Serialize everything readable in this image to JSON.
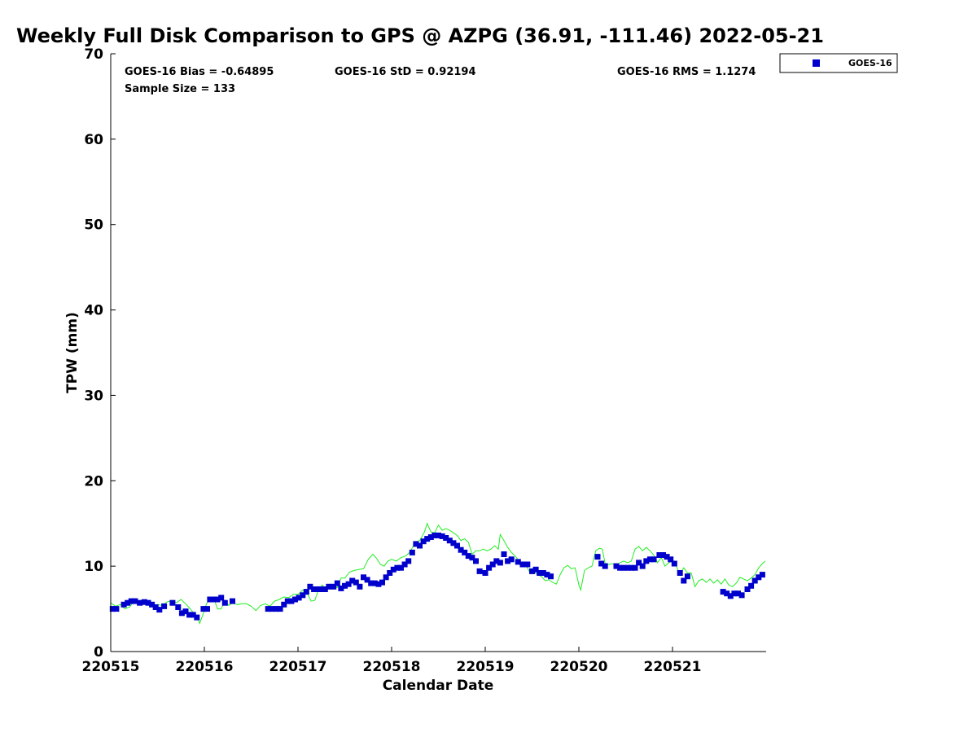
{
  "chart_data": {
    "type": "scatter",
    "title": "Weekly Full Disk Comparison to GPS @ AZPG (36.91, -111.46) 2022-05-21",
    "xlabel": "Calendar Date",
    "ylabel": "TPW (mm)",
    "xlim": [
      0,
      7
    ],
    "ylim": [
      0,
      70
    ],
    "x_ticks": [
      0,
      1,
      2,
      3,
      4,
      5,
      6
    ],
    "x_tick_labels": [
      "220515",
      "220516",
      "220517",
      "220518",
      "220519",
      "220520",
      "220521"
    ],
    "y_ticks": [
      0,
      10,
      20,
      30,
      40,
      50,
      60,
      70
    ],
    "y_tick_labels": [
      "0",
      "10",
      "20",
      "30",
      "40",
      "50",
      "60",
      "70"
    ],
    "grid": false,
    "legend_position": "outside-top-right",
    "stats": {
      "bias": "GOES-16 Bias = -0.64895",
      "std": "GOES-16 StD = 0.92194",
      "rms": "GOES-16 RMS = 1.1274",
      "sample": "Sample Size = 133"
    },
    "series": [
      {
        "name": "GOES-16",
        "kind": "markers",
        "color": "#0000cc",
        "points": [
          [
            0.02,
            5.0
          ],
          [
            0.06,
            5.0
          ],
          [
            0.14,
            5.5
          ],
          [
            0.18,
            5.7
          ],
          [
            0.22,
            5.9
          ],
          [
            0.26,
            5.9
          ],
          [
            0.31,
            5.7
          ],
          [
            0.36,
            5.8
          ],
          [
            0.4,
            5.7
          ],
          [
            0.44,
            5.5
          ],
          [
            0.48,
            5.2
          ],
          [
            0.52,
            4.9
          ],
          [
            0.57,
            5.3
          ],
          [
            0.66,
            5.7
          ],
          [
            0.72,
            5.2
          ],
          [
            0.76,
            4.5
          ],
          [
            0.8,
            4.7
          ],
          [
            0.84,
            4.3
          ],
          [
            0.88,
            4.3
          ],
          [
            0.92,
            4.0
          ],
          [
            0.99,
            5.0
          ],
          [
            1.03,
            5.0
          ],
          [
            1.06,
            6.1
          ],
          [
            1.1,
            6.1
          ],
          [
            1.14,
            6.1
          ],
          [
            1.18,
            6.3
          ],
          [
            1.22,
            5.7
          ],
          [
            1.3,
            5.9
          ],
          [
            1.68,
            5.0
          ],
          [
            1.72,
            5.0
          ],
          [
            1.77,
            5.0
          ],
          [
            1.81,
            5.0
          ],
          [
            1.85,
            5.5
          ],
          [
            1.89,
            5.9
          ],
          [
            1.93,
            5.9
          ],
          [
            1.97,
            6.1
          ],
          [
            2.01,
            6.3
          ],
          [
            2.05,
            6.6
          ],
          [
            2.09,
            7.0
          ],
          [
            2.13,
            7.6
          ],
          [
            2.17,
            7.3
          ],
          [
            2.21,
            7.3
          ],
          [
            2.25,
            7.3
          ],
          [
            2.29,
            7.3
          ],
          [
            2.33,
            7.6
          ],
          [
            2.38,
            7.6
          ],
          [
            2.42,
            8.0
          ],
          [
            2.46,
            7.4
          ],
          [
            2.5,
            7.7
          ],
          [
            2.54,
            7.9
          ],
          [
            2.58,
            8.3
          ],
          [
            2.62,
            8.1
          ],
          [
            2.66,
            7.6
          ],
          [
            2.7,
            8.7
          ],
          [
            2.74,
            8.4
          ],
          [
            2.78,
            8.0
          ],
          [
            2.82,
            8.0
          ],
          [
            2.86,
            7.9
          ],
          [
            2.9,
            8.1
          ],
          [
            2.94,
            8.7
          ],
          [
            2.98,
            9.2
          ],
          [
            3.02,
            9.6
          ],
          [
            3.06,
            9.8
          ],
          [
            3.1,
            9.8
          ],
          [
            3.14,
            10.2
          ],
          [
            3.18,
            10.6
          ],
          [
            3.22,
            11.6
          ],
          [
            3.26,
            12.6
          ],
          [
            3.3,
            12.4
          ],
          [
            3.34,
            12.9
          ],
          [
            3.38,
            13.2
          ],
          [
            3.42,
            13.4
          ],
          [
            3.46,
            13.6
          ],
          [
            3.5,
            13.6
          ],
          [
            3.54,
            13.5
          ],
          [
            3.58,
            13.3
          ],
          [
            3.62,
            13.0
          ],
          [
            3.66,
            12.7
          ],
          [
            3.7,
            12.4
          ],
          [
            3.74,
            11.9
          ],
          [
            3.78,
            11.6
          ],
          [
            3.82,
            11.2
          ],
          [
            3.86,
            11.0
          ],
          [
            3.9,
            10.6
          ],
          [
            3.94,
            9.4
          ],
          [
            4.0,
            9.2
          ],
          [
            4.04,
            9.8
          ],
          [
            4.08,
            10.2
          ],
          [
            4.12,
            10.6
          ],
          [
            4.16,
            10.4
          ],
          [
            4.2,
            11.4
          ],
          [
            4.24,
            10.6
          ],
          [
            4.28,
            10.8
          ],
          [
            4.35,
            10.5
          ],
          [
            4.4,
            10.2
          ],
          [
            4.45,
            10.2
          ],
          [
            4.5,
            9.4
          ],
          [
            4.54,
            9.6
          ],
          [
            4.58,
            9.2
          ],
          [
            4.62,
            9.2
          ],
          [
            4.66,
            9.0
          ],
          [
            4.7,
            8.8
          ],
          [
            5.2,
            11.1
          ],
          [
            5.24,
            10.3
          ],
          [
            5.28,
            10.0
          ],
          [
            5.4,
            10.0
          ],
          [
            5.44,
            9.8
          ],
          [
            5.48,
            9.8
          ],
          [
            5.52,
            9.8
          ],
          [
            5.56,
            9.8
          ],
          [
            5.6,
            9.8
          ],
          [
            5.64,
            10.4
          ],
          [
            5.68,
            10.0
          ],
          [
            5.72,
            10.6
          ],
          [
            5.76,
            10.8
          ],
          [
            5.8,
            10.8
          ],
          [
            5.86,
            11.3
          ],
          [
            5.9,
            11.3
          ],
          [
            5.94,
            11.1
          ],
          [
            5.98,
            10.8
          ],
          [
            6.02,
            10.3
          ],
          [
            6.08,
            9.2
          ],
          [
            6.12,
            8.3
          ],
          [
            6.16,
            8.8
          ],
          [
            6.54,
            7.0
          ],
          [
            6.58,
            6.8
          ],
          [
            6.62,
            6.5
          ],
          [
            6.66,
            6.8
          ],
          [
            6.7,
            6.8
          ],
          [
            6.74,
            6.6
          ],
          [
            6.8,
            7.3
          ],
          [
            6.84,
            7.7
          ],
          [
            6.88,
            8.3
          ],
          [
            6.92,
            8.7
          ],
          [
            6.96,
            9.0
          ]
        ]
      },
      {
        "kind": "line",
        "color": "#22ee22",
        "points": [
          [
            0.0,
            5.7
          ],
          [
            0.05,
            5.3
          ],
          [
            0.1,
            5.5
          ],
          [
            0.15,
            5.0
          ],
          [
            0.2,
            5.2
          ],
          [
            0.25,
            5.9
          ],
          [
            0.3,
            5.8
          ],
          [
            0.35,
            5.6
          ],
          [
            0.4,
            5.8
          ],
          [
            0.45,
            5.3
          ],
          [
            0.5,
            5.5
          ],
          [
            0.55,
            5.4
          ],
          [
            0.6,
            5.8
          ],
          [
            0.65,
            6.0
          ],
          [
            0.7,
            5.7
          ],
          [
            0.75,
            6.1
          ],
          [
            0.8,
            5.6
          ],
          [
            0.84,
            5.1
          ],
          [
            0.88,
            4.6
          ],
          [
            0.92,
            4.2
          ],
          [
            0.95,
            3.3
          ],
          [
            0.98,
            4.2
          ],
          [
            1.02,
            5.5
          ],
          [
            1.06,
            6.4
          ],
          [
            1.1,
            6.3
          ],
          [
            1.14,
            5.0
          ],
          [
            1.18,
            5.0
          ],
          [
            1.22,
            6.0
          ],
          [
            1.26,
            5.4
          ],
          [
            1.3,
            5.7
          ],
          [
            1.35,
            5.5
          ],
          [
            1.4,
            5.6
          ],
          [
            1.45,
            5.6
          ],
          [
            1.5,
            5.3
          ],
          [
            1.55,
            4.8
          ],
          [
            1.6,
            5.4
          ],
          [
            1.65,
            5.6
          ],
          [
            1.7,
            5.3
          ],
          [
            1.75,
            5.9
          ],
          [
            1.8,
            6.1
          ],
          [
            1.85,
            6.4
          ],
          [
            1.9,
            6.3
          ],
          [
            1.95,
            6.7
          ],
          [
            2.0,
            6.7
          ],
          [
            2.05,
            7.2
          ],
          [
            2.1,
            6.8
          ],
          [
            2.14,
            5.9
          ],
          [
            2.18,
            6.0
          ],
          [
            2.22,
            7.3
          ],
          [
            2.26,
            7.8
          ],
          [
            2.3,
            7.2
          ],
          [
            2.34,
            7.9
          ],
          [
            2.38,
            7.7
          ],
          [
            2.42,
            7.5
          ],
          [
            2.46,
            8.6
          ],
          [
            2.5,
            8.6
          ],
          [
            2.55,
            9.3
          ],
          [
            2.6,
            9.5
          ],
          [
            2.65,
            9.6
          ],
          [
            2.7,
            9.7
          ],
          [
            2.75,
            10.8
          ],
          [
            2.8,
            11.4
          ],
          [
            2.84,
            10.9
          ],
          [
            2.88,
            10.2
          ],
          [
            2.92,
            10.0
          ],
          [
            2.96,
            10.6
          ],
          [
            3.0,
            10.8
          ],
          [
            3.05,
            10.6
          ],
          [
            3.1,
            11.0
          ],
          [
            3.15,
            11.2
          ],
          [
            3.2,
            11.7
          ],
          [
            3.25,
            12.8
          ],
          [
            3.3,
            13.0
          ],
          [
            3.35,
            14.0
          ],
          [
            3.38,
            15.0
          ],
          [
            3.42,
            14.0
          ],
          [
            3.46,
            13.9
          ],
          [
            3.5,
            14.8
          ],
          [
            3.54,
            14.2
          ],
          [
            3.58,
            14.4
          ],
          [
            3.62,
            14.2
          ],
          [
            3.66,
            13.9
          ],
          [
            3.7,
            13.6
          ],
          [
            3.74,
            13.0
          ],
          [
            3.78,
            13.2
          ],
          [
            3.82,
            12.8
          ],
          [
            3.86,
            11.4
          ],
          [
            3.9,
            11.8
          ],
          [
            3.94,
            11.8
          ],
          [
            3.98,
            12.0
          ],
          [
            4.02,
            11.8
          ],
          [
            4.06,
            12.0
          ],
          [
            4.1,
            12.4
          ],
          [
            4.14,
            12.0
          ],
          [
            4.16,
            13.7
          ],
          [
            4.2,
            13.0
          ],
          [
            4.24,
            12.2
          ],
          [
            4.28,
            11.6
          ],
          [
            4.32,
            11.2
          ],
          [
            4.36,
            10.6
          ],
          [
            4.4,
            10.4
          ],
          [
            4.44,
            10.0
          ],
          [
            4.48,
            9.2
          ],
          [
            4.52,
            9.3
          ],
          [
            4.56,
            9.0
          ],
          [
            4.6,
            8.8
          ],
          [
            4.64,
            8.3
          ],
          [
            4.68,
            8.4
          ],
          [
            4.72,
            8.1
          ],
          [
            4.76,
            7.9
          ],
          [
            4.8,
            9.0
          ],
          [
            4.84,
            9.8
          ],
          [
            4.88,
            10.1
          ],
          [
            4.92,
            9.7
          ],
          [
            4.96,
            9.8
          ],
          [
            5.0,
            7.8
          ],
          [
            5.02,
            7.2
          ],
          [
            5.06,
            9.5
          ],
          [
            5.1,
            9.8
          ],
          [
            5.14,
            10.0
          ],
          [
            5.18,
            11.8
          ],
          [
            5.22,
            12.1
          ],
          [
            5.25,
            12.0
          ],
          [
            5.28,
            10.3
          ],
          [
            5.32,
            10.2
          ],
          [
            5.36,
            10.3
          ],
          [
            5.4,
            10.0
          ],
          [
            5.44,
            10.4
          ],
          [
            5.48,
            10.6
          ],
          [
            5.52,
            10.4
          ],
          [
            5.56,
            10.6
          ],
          [
            5.6,
            12.0
          ],
          [
            5.64,
            12.3
          ],
          [
            5.68,
            11.8
          ],
          [
            5.72,
            12.2
          ],
          [
            5.76,
            11.8
          ],
          [
            5.8,
            11.3
          ],
          [
            5.84,
            10.4
          ],
          [
            5.88,
            11.0
          ],
          [
            5.92,
            10.0
          ],
          [
            5.96,
            10.4
          ],
          [
            6.0,
            10.6
          ],
          [
            6.04,
            10.0
          ],
          [
            6.08,
            9.0
          ],
          [
            6.12,
            9.8
          ],
          [
            6.16,
            9.2
          ],
          [
            6.2,
            9.2
          ],
          [
            6.24,
            7.6
          ],
          [
            6.28,
            8.3
          ],
          [
            6.32,
            8.5
          ],
          [
            6.36,
            8.1
          ],
          [
            6.4,
            8.5
          ],
          [
            6.44,
            8.0
          ],
          [
            6.48,
            8.4
          ],
          [
            6.52,
            7.9
          ],
          [
            6.56,
            8.5
          ],
          [
            6.6,
            7.8
          ],
          [
            6.64,
            7.6
          ],
          [
            6.68,
            8.0
          ],
          [
            6.72,
            8.7
          ],
          [
            6.76,
            8.5
          ],
          [
            6.8,
            8.3
          ],
          [
            6.84,
            8.6
          ],
          [
            6.88,
            9.0
          ],
          [
            6.92,
            9.8
          ],
          [
            6.96,
            10.3
          ],
          [
            6.99,
            10.6
          ]
        ]
      }
    ]
  }
}
